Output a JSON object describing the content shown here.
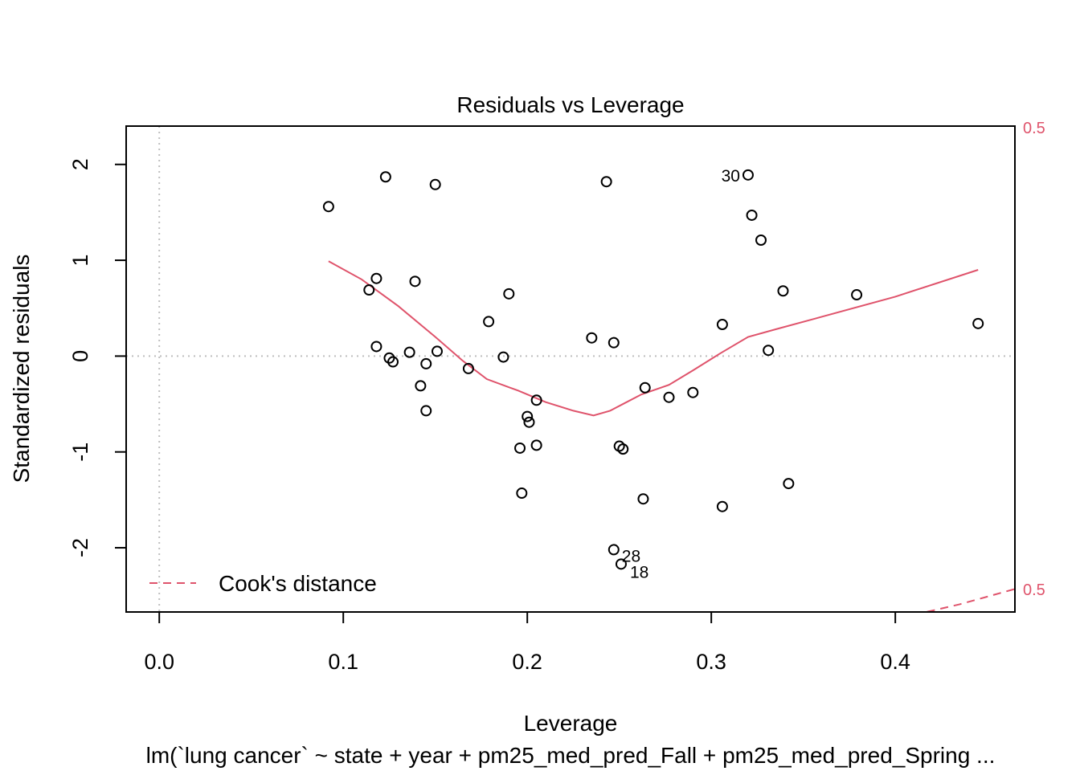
{
  "colors": {
    "accent": "#DF536B",
    "points": "#000000",
    "reference_lines": "#BEBEBE"
  },
  "chart_data": {
    "type": "scatter",
    "title": "Residuals vs Leverage",
    "xlabel": "Leverage",
    "ylabel": "Standardized residuals",
    "subtitle": "lm(`lung cancer` ~ state + year + pm25_med_pred_Fall + pm25_med_pred_Spring ...",
    "xlim": [
      -0.018,
      0.465
    ],
    "ylim": [
      -2.67,
      2.4
    ],
    "x_ticks": [
      0.0,
      0.1,
      0.2,
      0.3,
      0.4
    ],
    "x_tick_labels": [
      "0.0",
      "0.1",
      "0.2",
      "0.3",
      "0.4"
    ],
    "y_ticks": [
      2,
      1,
      0,
      -1,
      -2
    ],
    "y_tick_labels": [
      "2",
      "1",
      "0",
      "-1",
      "-2"
    ],
    "grid": false,
    "reference_lines": {
      "x": 0,
      "y": 0,
      "style": "dotted"
    },
    "points": [
      {
        "x": 0.092,
        "y": 1.56
      },
      {
        "x": 0.123,
        "y": 1.87
      },
      {
        "x": 0.15,
        "y": 1.79
      },
      {
        "x": 0.243,
        "y": 1.82
      },
      {
        "x": 0.32,
        "y": 1.89,
        "label": "30"
      },
      {
        "x": 0.322,
        "y": 1.47
      },
      {
        "x": 0.327,
        "y": 1.21
      },
      {
        "x": 0.118,
        "y": 0.81
      },
      {
        "x": 0.114,
        "y": 0.69
      },
      {
        "x": 0.139,
        "y": 0.78
      },
      {
        "x": 0.19,
        "y": 0.65
      },
      {
        "x": 0.339,
        "y": 0.68
      },
      {
        "x": 0.379,
        "y": 0.64
      },
      {
        "x": 0.179,
        "y": 0.36
      },
      {
        "x": 0.306,
        "y": 0.33
      },
      {
        "x": 0.445,
        "y": 0.34
      },
      {
        "x": 0.235,
        "y": 0.19
      },
      {
        "x": 0.247,
        "y": 0.14
      },
      {
        "x": 0.118,
        "y": 0.1
      },
      {
        "x": 0.125,
        "y": -0.02
      },
      {
        "x": 0.127,
        "y": -0.06
      },
      {
        "x": 0.136,
        "y": 0.04
      },
      {
        "x": 0.151,
        "y": 0.05
      },
      {
        "x": 0.145,
        "y": -0.08
      },
      {
        "x": 0.187,
        "y": -0.01
      },
      {
        "x": 0.331,
        "y": 0.06
      },
      {
        "x": 0.168,
        "y": -0.13
      },
      {
        "x": 0.142,
        "y": -0.31
      },
      {
        "x": 0.145,
        "y": -0.57
      },
      {
        "x": 0.205,
        "y": -0.46
      },
      {
        "x": 0.2,
        "y": -0.63
      },
      {
        "x": 0.201,
        "y": -0.69
      },
      {
        "x": 0.264,
        "y": -0.33
      },
      {
        "x": 0.277,
        "y": -0.43
      },
      {
        "x": 0.29,
        "y": -0.38
      },
      {
        "x": 0.196,
        "y": -0.96
      },
      {
        "x": 0.205,
        "y": -0.93
      },
      {
        "x": 0.25,
        "y": -0.94
      },
      {
        "x": 0.252,
        "y": -0.97
      },
      {
        "x": 0.197,
        "y": -1.43
      },
      {
        "x": 0.263,
        "y": -1.49
      },
      {
        "x": 0.306,
        "y": -1.57
      },
      {
        "x": 0.342,
        "y": -1.33
      },
      {
        "x": 0.247,
        "y": -2.02,
        "label": "28"
      },
      {
        "x": 0.251,
        "y": -2.17,
        "label": "18"
      }
    ],
    "smooth_line": {
      "x": [
        0.092,
        0.11,
        0.13,
        0.15,
        0.165,
        0.178,
        0.195,
        0.21,
        0.225,
        0.236,
        0.245,
        0.252,
        0.262,
        0.277,
        0.29,
        0.305,
        0.32,
        0.335,
        0.36,
        0.4,
        0.445
      ],
      "y": [
        0.99,
        0.8,
        0.52,
        0.2,
        -0.05,
        -0.24,
        -0.36,
        -0.48,
        -0.57,
        -0.62,
        -0.57,
        -0.5,
        -0.4,
        -0.3,
        -0.15,
        0.03,
        0.2,
        0.28,
        0.41,
        0.62,
        0.9
      ]
    },
    "cooks_distance": {
      "legend_label": "Cook's distance",
      "legend_position": "bottom-left",
      "contour_label": "0.5",
      "upper_contour": {
        "x": [],
        "y": []
      },
      "lower_contour": {
        "x": [
          0.41,
          0.435,
          0.465
        ],
        "y": [
          -2.7,
          -2.59,
          -2.43
        ]
      }
    }
  }
}
